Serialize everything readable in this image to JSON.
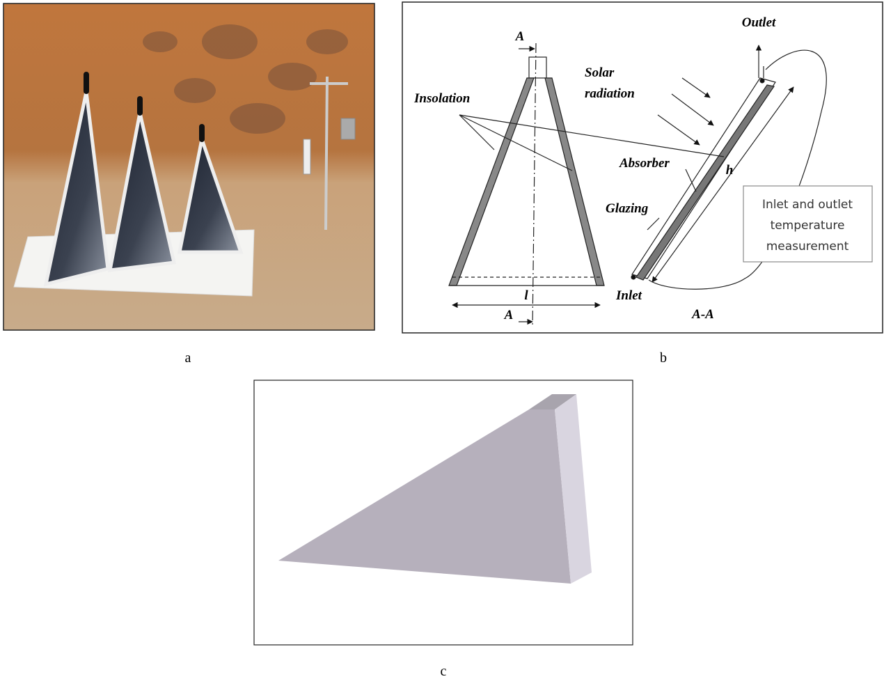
{
  "figure": {
    "panel_labels": [
      "a",
      "b",
      "c"
    ]
  },
  "diagram": {
    "section_top": "A",
    "section_bottom": "A",
    "insolation": "Insolation",
    "solar_radiation": [
      "Solar",
      "radiation"
    ],
    "outlet": "Outlet",
    "absorber": "Absorber",
    "glazing": "Glazing",
    "height": "h",
    "length": "l",
    "inlet": "Inlet",
    "section_view": "A-A",
    "measurement_note": [
      "Inlet and outlet",
      "temperature",
      "measurement"
    ]
  }
}
